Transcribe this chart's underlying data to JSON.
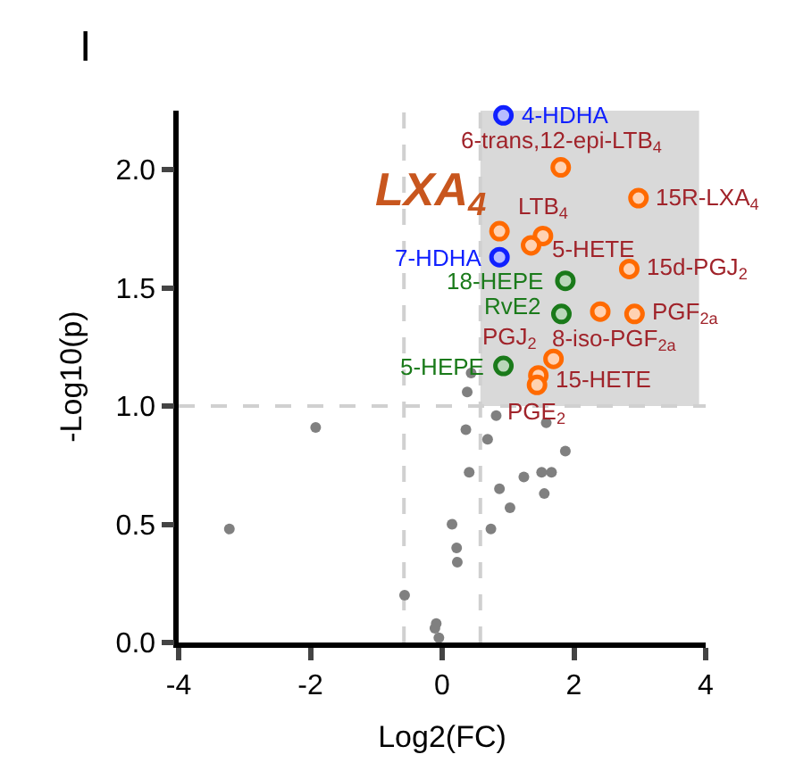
{
  "chart_data": {
    "type": "scatter",
    "title": "I",
    "xlabel": "Log2(FC)",
    "ylabel": "-Log10(p)",
    "xlim": [
      -4,
      4
    ],
    "xticks": [
      -4,
      -2,
      0,
      2,
      4
    ],
    "ylim": [
      0,
      2.25
    ],
    "yticks": [
      {
        "value": 0,
        "label": "0.0"
      },
      {
        "value": 0.5,
        "label": "0.5"
      },
      {
        "value": 1,
        "label": "1.0"
      },
      {
        "value": 1.5,
        "label": "1.5"
      },
      {
        "value": 2,
        "label": "2.0"
      }
    ],
    "grid": false,
    "ref_lines": [
      {
        "axis": "y",
        "value": 1.0,
        "color": "#d0d0d0",
        "line_style": "dashed"
      },
      {
        "axis": "x",
        "value": -0.58,
        "color": "#d0d0d0",
        "line_style": "dashed"
      },
      {
        "axis": "x",
        "value": 0.58,
        "color": "#d0d0d0",
        "line_style": "dashed"
      }
    ],
    "bands": [
      {
        "axis": "x",
        "from": 0.58,
        "to": 3.9,
        "color": "#d9d9d9"
      }
    ],
    "series": [
      {
        "color": "#808080",
        "x": [
          0.44,
          0.38,
          0.82,
          -1.92,
          0.36,
          0.69,
          1.58,
          1.87,
          0.41,
          1.24,
          1.51,
          1.66,
          0.87,
          1.55,
          1.03,
          0.15,
          0.74,
          -3.23,
          0.22,
          0.23,
          -0.57,
          -0.09,
          -0.11,
          -0.05
        ],
        "values": [
          1.14,
          1.06,
          0.96,
          0.91,
          0.9,
          0.86,
          0.93,
          0.81,
          0.72,
          0.7,
          0.72,
          0.72,
          0.65,
          0.63,
          0.57,
          0.5,
          0.48,
          0.48,
          0.4,
          0.34,
          0.2,
          0.08,
          0.06,
          0.02
        ]
      },
      {
        "color": "#ff6a00",
        "x": [
          1.8,
          2.98,
          0.87,
          1.53,
          1.35,
          2.84,
          2.4,
          2.92,
          1.69,
          1.46,
          1.44
        ],
        "values": [
          2.01,
          1.88,
          1.74,
          1.72,
          1.68,
          1.58,
          1.4,
          1.39,
          1.2,
          1.13,
          1.09
        ]
      },
      {
        "color": "#1020ff",
        "x": [
          0.93,
          0.87
        ],
        "values": [
          2.23,
          1.63
        ]
      },
      {
        "color": "#1a7a1a",
        "x": [
          1.87,
          1.81,
          0.93
        ],
        "values": [
          1.53,
          1.39,
          1.17
        ]
      }
    ],
    "annotations": [
      {
        "text": "6-trans,12-epi-LTB$_{4}$",
        "x": 1.8,
        "y": 2.01
      },
      {
        "text": "15R-LXA$_{4}$",
        "x": 2.98,
        "y": 1.88
      },
      {
        "text": "LXA$_{4}$",
        "x": 0.87,
        "y": 1.74
      },
      {
        "text": "LTB$_{4}$",
        "x": 1.53,
        "y": 1.72
      },
      {
        "text": "5-HETE",
        "x": 1.35,
        "y": 1.68
      },
      {
        "text": "15d-PGJ$_{2}$",
        "x": 2.84,
        "y": 1.58
      },
      {
        "text": "8-iso-PGF$_{2a}$",
        "x": 2.4,
        "y": 1.4
      },
      {
        "text": "PGF$_{2a}$",
        "x": 2.92,
        "y": 1.39
      },
      {
        "text": "PGJ$_{2}$",
        "x": 1.69,
        "y": 1.2
      },
      {
        "text": "15-HETE",
        "x": 1.46,
        "y": 1.13
      },
      {
        "text": "PGE$_{2}$",
        "x": 1.44,
        "y": 1.09
      },
      {
        "text": "4-HDHA",
        "x": 0.93,
        "y": 2.23
      },
      {
        "text": "7-HDHA",
        "x": 0.87,
        "y": 1.63
      },
      {
        "text": "18-HEPE",
        "x": 1.87,
        "y": 1.53
      },
      {
        "text": "RvE2",
        "x": 1.81,
        "y": 1.39
      },
      {
        "text": "5-HEPE",
        "x": 0.93,
        "y": 1.17
      }
    ]
  }
}
